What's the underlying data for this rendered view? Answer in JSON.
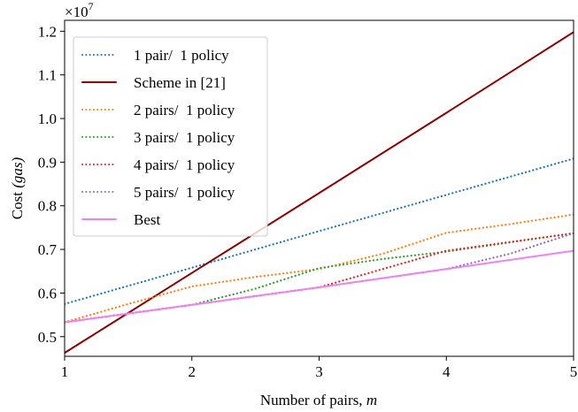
{
  "chart_data": {
    "type": "line",
    "xlabel": "Number of pairs, ",
    "xlabel_var": "m",
    "ylabel": "Cost ",
    "ylabel_unit": "(gas)",
    "y_multiplier_base": "×10",
    "y_multiplier_exp": "7",
    "xlim": [
      1,
      5
    ],
    "ylim": [
      0.455,
      1.225
    ],
    "x_ticks": [
      1,
      2,
      3,
      4,
      5
    ],
    "x_tick_labels": [
      "1",
      "2",
      "3",
      "4",
      "5"
    ],
    "y_ticks": [
      0.5,
      0.6,
      0.7,
      0.8,
      0.9,
      1.0,
      1.1,
      1.2
    ],
    "y_tick_labels": [
      "0.5",
      "0.6",
      "0.7",
      "0.8",
      "0.9",
      "1.0",
      "1.1",
      "1.2"
    ],
    "grid": false,
    "legend_position": "top-left",
    "series": [
      {
        "name": "1 pair/  1 policy",
        "color": "#1f77b4",
        "style": "dotted",
        "x": [
          1,
          2,
          3,
          4,
          5
        ],
        "y": [
          0.575,
          0.658,
          0.742,
          0.825,
          0.908
        ]
      },
      {
        "name": "Scheme in [21]",
        "color": "#8b0000",
        "style": "solid",
        "x": [
          1,
          2,
          3,
          4,
          5
        ],
        "y": [
          0.463,
          0.646,
          0.829,
          1.013,
          1.198
        ]
      },
      {
        "name": "2 pairs/  1 policy",
        "color": "#ff7f0e",
        "style": "dotted",
        "x": [
          1,
          1.5,
          2,
          2.5,
          3,
          3.5,
          4,
          4.5,
          5
        ],
        "y": [
          0.533,
          0.575,
          0.615,
          0.637,
          0.655,
          0.69,
          0.738,
          0.758,
          0.78
        ]
      },
      {
        "name": "3 pairs/  1 policy",
        "color": "#2ca02c",
        "style": "dotted",
        "x": [
          1,
          1.5,
          2,
          2.5,
          3,
          3.5,
          4,
          4.5,
          5
        ],
        "y": [
          0.533,
          0.553,
          0.573,
          0.61,
          0.657,
          0.678,
          0.695,
          0.716,
          0.737
        ]
      },
      {
        "name": "4 pairs/  1 policy",
        "color": "#d62728",
        "style": "dotted",
        "x": [
          1,
          1.5,
          2,
          2.5,
          3,
          3.5,
          4,
          4.5,
          5
        ],
        "y": [
          0.533,
          0.553,
          0.573,
          0.593,
          0.613,
          0.655,
          0.697,
          0.717,
          0.737
        ]
      },
      {
        "name": "5 pairs/  1 policy",
        "color": "#9467bd",
        "style": "dotted",
        "x": [
          1,
          1.5,
          2,
          2.5,
          3,
          3.5,
          4,
          4.5,
          5
        ],
        "y": [
          0.533,
          0.553,
          0.573,
          0.593,
          0.613,
          0.634,
          0.655,
          0.69,
          0.737
        ]
      },
      {
        "name": "Best",
        "color": "#ee82ee",
        "style": "solid",
        "x": [
          1,
          2,
          3,
          4,
          5
        ],
        "y": [
          0.533,
          0.573,
          0.613,
          0.655,
          0.697
        ]
      }
    ]
  }
}
